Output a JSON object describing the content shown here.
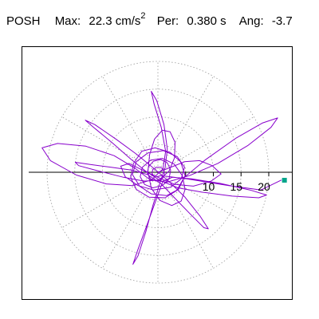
{
  "header": {
    "title": "POSH",
    "max_label": "Max:",
    "max_value": "22.3",
    "max_unit": "cm/s",
    "max_unit_exp": "2",
    "period_label": "Per:",
    "period_value": "0.380 s",
    "angle_label": "Ang:",
    "angle_value": "-3.7"
  },
  "colors": {
    "trace": "#8800cc",
    "grid": "#999999",
    "axis": "#000000",
    "max_marker": "#00a58a"
  },
  "chart_data": {
    "type": "polar-hodogram",
    "title": "",
    "radial_ticks": [
      5,
      10,
      15,
      20
    ],
    "radial_tick_labels": [
      "10",
      "15",
      "20"
    ],
    "rmax": 25,
    "max_point": {
      "r": 22.3,
      "angle_deg": -3.7
    },
    "trace": [
      [
        0,
        0
      ],
      [
        2.1,
        0.8
      ],
      [
        4.8,
        1.9
      ],
      [
        7.5,
        2.1
      ],
      [
        9.8,
        1.2
      ],
      [
        11.4,
        -0.3
      ],
      [
        9.6,
        -1.6
      ],
      [
        6.4,
        -2.5
      ],
      [
        3.1,
        -2.2
      ],
      [
        0.4,
        -1.1
      ],
      [
        -2.6,
        0.3
      ],
      [
        -5.2,
        1.6
      ],
      [
        -6.7,
        1.1
      ],
      [
        -5.9,
        -0.8
      ],
      [
        -3.6,
        -2.4
      ],
      [
        -0.8,
        -3.2
      ],
      [
        2.3,
        -2.7
      ],
      [
        4.2,
        -1.2
      ],
      [
        4.8,
        0.9
      ],
      [
        3.5,
        2.8
      ],
      [
        1.0,
        3.9
      ],
      [
        -1.8,
        3.5
      ],
      [
        -3.9,
        1.9
      ],
      [
        -4.6,
        -0.4
      ],
      [
        -3.3,
        -2.5
      ],
      [
        -1.2,
        -3.9
      ],
      [
        1.6,
        -4.2
      ],
      [
        3.7,
        -3.1
      ],
      [
        4.9,
        -0.6
      ],
      [
        4.1,
        1.9
      ],
      [
        2.2,
        3.6
      ],
      [
        -0.5,
        4.4
      ],
      [
        -2.9,
        3.8
      ],
      [
        -4.4,
        1.6
      ],
      [
        -4.9,
        -0.9
      ],
      [
        -3.9,
        -3.1
      ],
      [
        -1.6,
        -4.5
      ],
      [
        1.3,
        -4.6
      ],
      [
        3.4,
        -3.3
      ],
      [
        4.7,
        -1.0
      ],
      [
        8.5,
        2.2
      ],
      [
        14.0,
        6.1
      ],
      [
        18.9,
        8.9
      ],
      [
        21.6,
        9.8
      ],
      [
        20.4,
        8.1
      ],
      [
        16.2,
        4.8
      ],
      [
        10.8,
        1.6
      ],
      [
        5.7,
        -0.6
      ],
      [
        1.6,
        -1.8
      ],
      [
        -1.5,
        -1.3
      ],
      [
        -4.1,
        0.7
      ],
      [
        -7.9,
        3.0
      ],
      [
        -13.0,
        4.7
      ],
      [
        -18.1,
        5.2
      ],
      [
        -20.9,
        4.4
      ],
      [
        -19.4,
        2.1
      ],
      [
        -14.7,
        -0.5
      ],
      [
        -9.3,
        -2.1
      ],
      [
        -4.6,
        -2.4
      ],
      [
        -1.2,
        -1.4
      ],
      [
        0.9,
        0.6
      ],
      [
        1.4,
        3.8
      ],
      [
        0.6,
        8.1
      ],
      [
        -0.7,
        12.4
      ],
      [
        -1.2,
        14.6
      ],
      [
        -0.2,
        12.9
      ],
      [
        1.1,
        8.6
      ],
      [
        1.7,
        4.2
      ],
      [
        1.3,
        0.8
      ],
      [
        0.3,
        -2.1
      ],
      [
        -0.9,
        -6.0
      ],
      [
        -2.2,
        -10.8
      ],
      [
        -3.6,
        -15.1
      ],
      [
        -4.5,
        -16.6
      ],
      [
        -3.7,
        -14.2
      ],
      [
        -2.0,
        -9.6
      ],
      [
        -0.3,
        -4.9
      ],
      [
        0.9,
        -1.6
      ],
      [
        2.6,
        -0.9
      ],
      [
        6.1,
        -1.2
      ],
      [
        11.2,
        -2.0
      ],
      [
        16.6,
        -3.2
      ],
      [
        19.6,
        -4.1
      ],
      [
        18.2,
        -4.6
      ],
      [
        13.4,
        -4.3
      ],
      [
        8.0,
        -3.6
      ],
      [
        3.6,
        -2.8
      ],
      [
        0.4,
        -1.5
      ],
      [
        -2.2,
        0.2
      ],
      [
        -4.8,
        2.3
      ],
      [
        -8.2,
        5.3
      ],
      [
        -11.6,
        8.1
      ],
      [
        -13.1,
        9.4
      ],
      [
        -11.4,
        8.6
      ],
      [
        -7.6,
        6.0
      ],
      [
        -3.9,
        3.3
      ],
      [
        -1.1,
        1.0
      ],
      [
        1.7,
        -1.4
      ],
      [
        4.8,
        -4.4
      ],
      [
        7.6,
        -7.9
      ],
      [
        9.1,
        -10.2
      ],
      [
        8.3,
        -10.0
      ],
      [
        5.9,
        -7.6
      ],
      [
        3.0,
        -4.6
      ],
      [
        0.6,
        -2.1
      ],
      [
        -1.9,
        -0.4
      ],
      [
        -4.8,
        0.4
      ],
      [
        -8.4,
        0.9
      ],
      [
        -12.2,
        1.4
      ],
      [
        -14.9,
        1.8
      ],
      [
        -14.3,
        1.2
      ],
      [
        -10.6,
        0.2
      ],
      [
        -6.2,
        -0.9
      ],
      [
        -2.5,
        -1.6
      ],
      [
        0.2,
        -1.4
      ],
      [
        2.0,
        0.2
      ],
      [
        3.0,
        2.6
      ],
      [
        3.1,
        5.4
      ],
      [
        2.2,
        7.3
      ],
      [
        0.8,
        7.6
      ],
      [
        -0.6,
        6.0
      ],
      [
        -1.5,
        3.2
      ],
      [
        -1.8,
        0.1
      ],
      [
        -1.2,
        -2.9
      ],
      [
        0.4,
        -5.1
      ],
      [
        2.5,
        -6.0
      ],
      [
        4.2,
        -5.2
      ],
      [
        4.9,
        -3.1
      ],
      [
        4.4,
        -0.6
      ],
      [
        2.9,
        1.5
      ],
      [
        0.8,
        2.5
      ],
      [
        -1.3,
        2.2
      ],
      [
        -2.8,
        0.9
      ],
      [
        -3.2,
        -0.8
      ],
      [
        -2.4,
        -2.2
      ],
      [
        -0.9,
        -2.8
      ],
      [
        0.8,
        -2.4
      ],
      [
        2.0,
        -1.2
      ],
      [
        2.3,
        0.4
      ],
      [
        1.7,
        1.7
      ],
      [
        0.5,
        2.3
      ],
      [
        -0.8,
        2.0
      ],
      [
        -1.7,
        1.0
      ],
      [
        -1.9,
        -0.2
      ],
      [
        -1.3,
        -1.2
      ],
      [
        -0.3,
        -1.6
      ],
      [
        0.7,
        -1.3
      ],
      [
        1.2,
        -0.5
      ],
      [
        1.1,
        0.4
      ],
      [
        0.5,
        0.9
      ],
      [
        -0.3,
        0.9
      ],
      [
        -0.9,
        0.5
      ],
      [
        -1.1,
        -0.1
      ],
      [
        -0.8,
        -0.6
      ],
      [
        -0.1,
        -0.8
      ],
      [
        0.6,
        -0.6
      ],
      [
        5.2,
        -1.2
      ],
      [
        12.8,
        -2.4
      ],
      [
        18.6,
        -3.2
      ],
      [
        22.3,
        -1.4
      ]
    ]
  }
}
